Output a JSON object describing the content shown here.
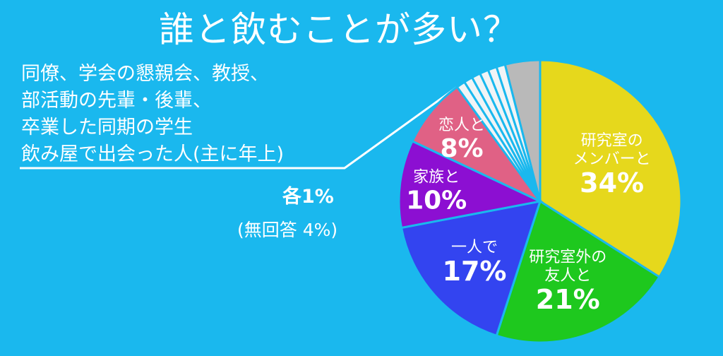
{
  "title": "誰と飲むことが多い？",
  "note_lines": [
    "同僚、学会の懇親会、教授、",
    "部活動の先輩・後輩、",
    "卒業した同期の学生",
    "飲み屋で出会った人(主に年上)"
  ],
  "each_label": "各1%",
  "no_answer_label": "(無回答 4%)",
  "chart_data": {
    "type": "pie",
    "title": "誰と飲むことが多い？",
    "start_angle_deg": 0,
    "direction": "clockwise",
    "slices": [
      {
        "label": [
          "研究室の",
          "メンバーと"
        ],
        "value": 34,
        "value_label": "34%",
        "color": "#e6d81c",
        "text_color": "#ffffff"
      },
      {
        "label": [
          "研究室外の",
          "友人と"
        ],
        "value": 21,
        "value_label": "21%",
        "color": "#1ec81e",
        "text_color": "#ffffff"
      },
      {
        "label": [
          "一人で"
        ],
        "value": 17,
        "value_label": "17%",
        "color": "#3344f0",
        "text_color": "#ffffff"
      },
      {
        "label": [
          "家族と"
        ],
        "value": 10,
        "value_label": "10%",
        "color": "#8c0fd2",
        "text_color": "#ffffff"
      },
      {
        "label": [
          "恋人と"
        ],
        "value": 8,
        "value_label": "8%",
        "color": "#e06185",
        "text_color": "#ffffff"
      },
      {
        "label": [
          "同僚"
        ],
        "value": 1,
        "value_label": "",
        "color": "#f0f4f6",
        "text_color": "#ffffff"
      },
      {
        "label": [
          "学会の懇親会"
        ],
        "value": 1,
        "value_label": "",
        "color": "#f0f4f6",
        "text_color": "#ffffff"
      },
      {
        "label": [
          "教授"
        ],
        "value": 1,
        "value_label": "",
        "color": "#f0f4f6",
        "text_color": "#ffffff"
      },
      {
        "label": [
          "部活動の先輩・後輩"
        ],
        "value": 1,
        "value_label": "",
        "color": "#f0f4f6",
        "text_color": "#ffffff"
      },
      {
        "label": [
          "卒業した同期の学生"
        ],
        "value": 1,
        "value_label": "",
        "color": "#f0f4f6",
        "text_color": "#ffffff"
      },
      {
        "label": [
          "飲み屋で出会った人(主に年上)"
        ],
        "value": 1,
        "value_label": "",
        "color": "#f0f4f6",
        "text_color": "#ffffff"
      },
      {
        "label": [
          "無回答"
        ],
        "value": 4,
        "value_label": "",
        "color": "#b9b9b9",
        "text_color": "#ffffff"
      }
    ]
  }
}
